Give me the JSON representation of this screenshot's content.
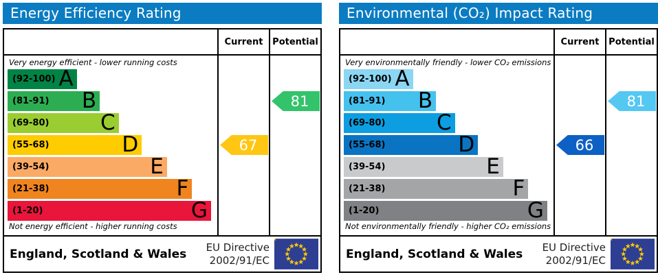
{
  "panels": [
    {
      "title": "Energy Efficiency Rating",
      "header_color": "#0b7cc2",
      "columns": {
        "current": "Current",
        "potential": "Potential"
      },
      "top_caption": "Very energy efficient - lower running costs",
      "bottom_caption": "Not energy efficient - higher running costs",
      "bands": [
        {
          "range": "(92-100)",
          "letter": "A",
          "color": "#008445",
          "width": "33%"
        },
        {
          "range": "(81-91)",
          "letter": "B",
          "color": "#2dad52",
          "width": "44%"
        },
        {
          "range": "(69-80)",
          "letter": "C",
          "color": "#9acd32",
          "width": "53%"
        },
        {
          "range": "(55-68)",
          "letter": "D",
          "color": "#ffcc00",
          "width": "64%"
        },
        {
          "range": "(39-54)",
          "letter": "E",
          "color": "#fbaa65",
          "width": "76%"
        },
        {
          "range": "(21-38)",
          "letter": "F",
          "color": "#f0841e",
          "width": "88%"
        },
        {
          "range": "(1-20)",
          "letter": "G",
          "color": "#e9153b",
          "width": "97%"
        }
      ],
      "current": {
        "value": "67",
        "band_index": 3,
        "color": "#ffc613"
      },
      "potential": {
        "value": "81",
        "band_index": 1,
        "color": "#33c36a"
      },
      "footer": {
        "region": "England, Scotland & Wales",
        "directive_line1": "EU Directive",
        "directive_line2": "2002/91/EC"
      }
    },
    {
      "title": "Environmental (CO₂) Impact Rating",
      "header_color": "#0b7cc2",
      "columns": {
        "current": "Current",
        "potential": "Potential"
      },
      "top_caption": "Very environmentally friendly - lower CO₂ emissions",
      "bottom_caption": "Not environmentally friendly - higher CO₂ emissions",
      "bands": [
        {
          "range": "(92-100)",
          "letter": "A",
          "color": "#8bd6f3",
          "width": "33%"
        },
        {
          "range": "(81-91)",
          "letter": "B",
          "color": "#45c1ee",
          "width": "44%"
        },
        {
          "range": "(69-80)",
          "letter": "C",
          "color": "#0c9ee1",
          "width": "53%"
        },
        {
          "range": "(55-68)",
          "letter": "D",
          "color": "#0a74c2",
          "width": "64%"
        },
        {
          "range": "(39-54)",
          "letter": "E",
          "color": "#c9cacc",
          "width": "76%"
        },
        {
          "range": "(21-38)",
          "letter": "F",
          "color": "#a3a5a7",
          "width": "88%"
        },
        {
          "range": "(1-20)",
          "letter": "G",
          "color": "#7f8184",
          "width": "97%"
        }
      ],
      "current": {
        "value": "66",
        "band_index": 3,
        "color": "#0d60c4"
      },
      "potential": {
        "value": "81",
        "band_index": 1,
        "color": "#55c8f2"
      },
      "footer": {
        "region": "England, Scotland & Wales",
        "directive_line1": "EU Directive",
        "directive_line2": "2002/91/EC"
      }
    }
  ],
  "flag_colors": {
    "field": "#2e3e92",
    "stars": "#ffcc00"
  },
  "chart_data": [
    {
      "type": "bar",
      "title": "Energy Efficiency Rating",
      "categories": [
        "A (92-100)",
        "B (81-91)",
        "C (69-80)",
        "D (55-68)",
        "E (39-54)",
        "F (21-38)",
        "G (1-20)"
      ],
      "band_colors": [
        "#008445",
        "#2dad52",
        "#9acd32",
        "#ffcc00",
        "#fbaa65",
        "#f0841e",
        "#e9153b"
      ],
      "current_value": 67,
      "current_band": "D",
      "potential_value": 81,
      "potential_band": "B",
      "xlabel": "",
      "ylabel": "",
      "value_range": [
        1,
        100
      ],
      "annotations": [
        "Very energy efficient - lower running costs",
        "Not energy efficient - higher running costs",
        "England, Scotland & Wales",
        "EU Directive 2002/91/EC"
      ]
    },
    {
      "type": "bar",
      "title": "Environmental (CO₂) Impact Rating",
      "categories": [
        "A (92-100)",
        "B (81-91)",
        "C (69-80)",
        "D (55-68)",
        "E (39-54)",
        "F (21-38)",
        "G (1-20)"
      ],
      "band_colors": [
        "#8bd6f3",
        "#45c1ee",
        "#0c9ee1",
        "#0a74c2",
        "#c9cacc",
        "#a3a5a7",
        "#7f8184"
      ],
      "current_value": 66,
      "current_band": "D",
      "potential_value": 81,
      "potential_band": "B",
      "xlabel": "",
      "ylabel": "",
      "value_range": [
        1,
        100
      ],
      "annotations": [
        "Very environmentally friendly - lower CO₂ emissions",
        "Not environmentally friendly - higher CO₂ emissions",
        "England, Scotland & Wales",
        "EU Directive 2002/91/EC"
      ]
    }
  ]
}
